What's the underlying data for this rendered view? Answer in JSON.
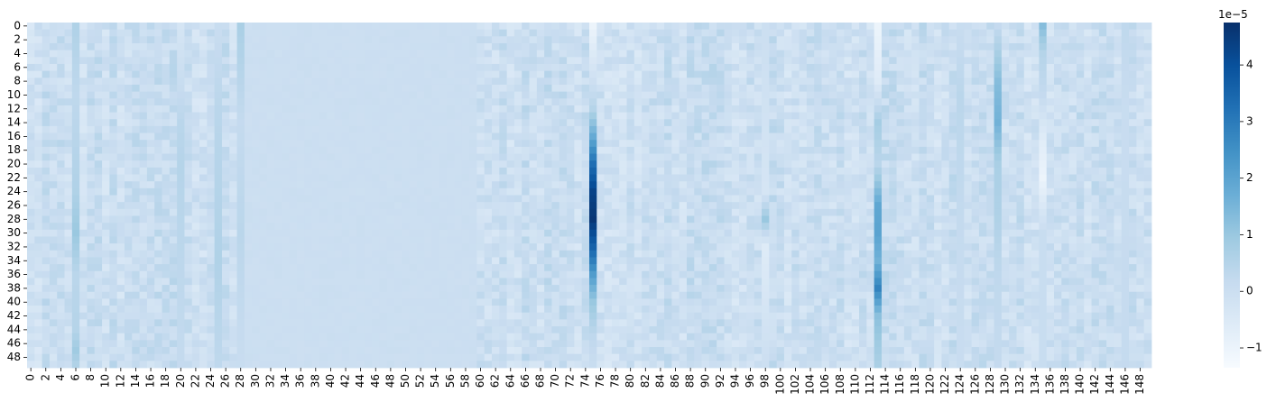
{
  "chart_data": {
    "type": "heatmap",
    "title": "",
    "xlabel": "",
    "ylabel": "",
    "n_rows": 50,
    "n_cols": 150,
    "x_tick_labels": [
      "0",
      "2",
      "4",
      "6",
      "8",
      "10",
      "12",
      "14",
      "16",
      "18",
      "20",
      "22",
      "24",
      "26",
      "28",
      "30",
      "32",
      "34",
      "36",
      "38",
      "40",
      "42",
      "44",
      "46",
      "48",
      "50",
      "52",
      "54",
      "56",
      "58",
      "60",
      "62",
      "64",
      "66",
      "68",
      "70",
      "72",
      "74",
      "76",
      "78",
      "80",
      "82",
      "84",
      "86",
      "88",
      "90",
      "92",
      "94",
      "96",
      "98",
      "100",
      "102",
      "104",
      "106",
      "108",
      "110",
      "112",
      "114",
      "116",
      "118",
      "120",
      "122",
      "124",
      "126",
      "128",
      "130",
      "132",
      "134",
      "136",
      "138",
      "140",
      "142",
      "144",
      "146",
      "148"
    ],
    "y_tick_labels": [
      "0",
      "2",
      "4",
      "6",
      "8",
      "10",
      "12",
      "14",
      "16",
      "18",
      "20",
      "22",
      "24",
      "26",
      "28",
      "30",
      "32",
      "34",
      "36",
      "38",
      "40",
      "42",
      "44",
      "46",
      "48"
    ],
    "colormap": "Blues",
    "vmin": -1.35e-05,
    "vmax": 4.75e-05,
    "baseline_value": 0,
    "colorbar": {
      "offset_label": "1e−5",
      "ticks": [
        -1,
        0,
        1,
        2,
        3,
        4
      ],
      "tick_labels": [
        "−1",
        "0",
        "1",
        "2",
        "3",
        "4"
      ],
      "scale": 1e-05
    },
    "notable_columns": [
      {
        "col": 75,
        "profile": [
          [
            0,
            -1e-05
          ],
          [
            6,
            -3e-06
          ],
          [
            12,
            5e-06
          ],
          [
            16,
            1.8e-05
          ],
          [
            20,
            3.3e-05
          ],
          [
            24,
            4.3e-05
          ],
          [
            28,
            4.6e-05
          ],
          [
            32,
            3.6e-05
          ],
          [
            36,
            2.2e-05
          ],
          [
            40,
            1e-05
          ],
          [
            45,
            3e-06
          ],
          [
            49,
            1e-06
          ]
        ]
      },
      {
        "col": 113,
        "profile": [
          [
            0,
            -1e-05
          ],
          [
            8,
            -6e-06
          ],
          [
            14,
            8e-06
          ],
          [
            20,
            4e-06
          ],
          [
            26,
            1.9e-05
          ],
          [
            30,
            2e-05
          ],
          [
            34,
            1.6e-05
          ],
          [
            38,
            2.8e-05
          ],
          [
            42,
            1.2e-05
          ],
          [
            46,
            9e-06
          ],
          [
            49,
            7e-06
          ]
        ]
      },
      {
        "col": 129,
        "profile": [
          [
            0,
            2e-06
          ],
          [
            8,
            1.3e-05
          ],
          [
            14,
            1.6e-05
          ],
          [
            20,
            7e-06
          ],
          [
            28,
            6e-06
          ],
          [
            36,
            3e-06
          ],
          [
            49,
            2e-06
          ]
        ]
      },
      {
        "col": 135,
        "profile": [
          [
            0,
            1.3e-05
          ],
          [
            4,
            5e-06
          ],
          [
            10,
            2e-06
          ],
          [
            16,
            -6e-06
          ],
          [
            22,
            -1e-05
          ],
          [
            30,
            1e-06
          ],
          [
            49,
            1e-06
          ]
        ]
      },
      {
        "col": 6,
        "profile": [
          [
            0,
            6e-06
          ],
          [
            10,
            3e-06
          ],
          [
            24,
            6e-06
          ],
          [
            30,
            1e-05
          ],
          [
            36,
            4e-06
          ],
          [
            44,
            5e-06
          ],
          [
            47,
            9e-06
          ],
          [
            49,
            6e-06
          ]
        ]
      },
      {
        "col": 28,
        "profile": [
          [
            0,
            7e-06
          ],
          [
            6,
            5e-06
          ],
          [
            14,
            2e-06
          ],
          [
            30,
            4e-06
          ],
          [
            49,
            1e-06
          ]
        ]
      },
      {
        "col": 98,
        "profile": [
          [
            0,
            0.0
          ],
          [
            24,
            -3e-06
          ],
          [
            28,
            1e-05
          ],
          [
            32,
            -6e-06
          ],
          [
            49,
            0.0
          ]
        ]
      },
      {
        "col": 25,
        "profile": [
          [
            0,
            1e-06
          ],
          [
            12,
            4e-06
          ],
          [
            34,
            6e-06
          ],
          [
            49,
            3e-06
          ]
        ]
      },
      {
        "col": 20,
        "profile": [
          [
            0,
            -3e-06
          ],
          [
            14,
            4e-06
          ],
          [
            20,
            5e-06
          ],
          [
            49,
            2e-06
          ]
        ]
      },
      {
        "col": 146,
        "profile": [
          [
            0,
            3e-06
          ],
          [
            12,
            1e-06
          ],
          [
            49,
            2e-06
          ]
        ]
      },
      {
        "col": 124,
        "profile": [
          [
            0,
            1e-06
          ],
          [
            10,
            4e-06
          ],
          [
            30,
            2e-06
          ],
          [
            49,
            1e-06
          ]
        ]
      }
    ]
  }
}
